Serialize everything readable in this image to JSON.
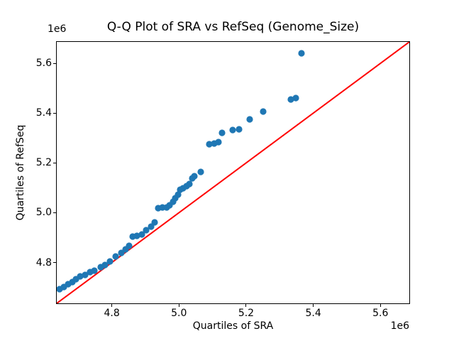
{
  "figure": {
    "background": "#ffffff",
    "text_color": "#000000",
    "spine_color": "#000000"
  },
  "chart_data": {
    "type": "scatter",
    "title": "Q-Q Plot of SRA vs RefSeq (Genome_Size)",
    "xlabel": "Quartiles of SRA",
    "ylabel": "Quartiles of RefSeq",
    "x_offset_text": "1e6",
    "y_offset_text": "1e6",
    "grid": false,
    "legend": "none",
    "xlim": [
      4636000,
      5686000
    ],
    "ylim": [
      4636000,
      5686000
    ],
    "x_ticks": {
      "values": [
        4800000,
        5000000,
        5200000,
        5400000,
        5600000
      ],
      "labels": [
        "4.8",
        "5.0",
        "5.2",
        "5.4",
        "5.6"
      ]
    },
    "y_ticks": {
      "values": [
        4800000,
        5000000,
        5200000,
        5400000,
        5600000
      ],
      "labels": [
        "4.8",
        "5.0",
        "5.2",
        "5.4",
        "5.6"
      ]
    },
    "marker_color": "#1f77b4",
    "marker_radius": 4.6,
    "reference_line": {
      "type": "identity",
      "color": "#ff0000",
      "width": 2,
      "x": [
        4636000,
        5686000
      ],
      "y": [
        4636000,
        5686000
      ]
    },
    "points": [
      [
        4644400,
        4693100
      ],
      [
        4657100,
        4701600
      ],
      [
        4669800,
        4713000
      ],
      [
        4682500,
        4721600
      ],
      [
        4693000,
        4733000
      ],
      [
        4705700,
        4744400
      ],
      [
        4720500,
        4750100
      ],
      [
        4735300,
        4761500
      ],
      [
        4748000,
        4767200
      ],
      [
        4767000,
        4781500
      ],
      [
        4779700,
        4790100
      ],
      [
        4794400,
        4804300
      ],
      [
        4811300,
        4824300
      ],
      [
        4828200,
        4838600
      ],
      [
        4840900,
        4852800
      ],
      [
        4851500,
        4867100
      ],
      [
        4862000,
        4904200
      ],
      [
        4874700,
        4907100
      ],
      [
        4889500,
        4912800
      ],
      [
        4902200,
        4929900
      ],
      [
        4917000,
        4944200
      ],
      [
        4927500,
        4961300
      ],
      [
        4938100,
        5018400
      ],
      [
        4950800,
        5021200
      ],
      [
        4963400,
        5021200
      ],
      [
        4971900,
        5029800
      ],
      [
        4982500,
        5044100
      ],
      [
        4988800,
        5058300
      ],
      [
        4997200,
        5072600
      ],
      [
        5003600,
        5092600
      ],
      [
        5012000,
        5098300
      ],
      [
        5022600,
        5106800
      ],
      [
        5031000,
        5115400
      ],
      [
        5039500,
        5138200
      ],
      [
        5045800,
        5146800
      ],
      [
        5064800,
        5163900
      ],
      [
        5090200,
        5275200
      ],
      [
        5105000,
        5278100
      ],
      [
        5117600,
        5283800
      ],
      [
        5128200,
        5320900
      ],
      [
        5159900,
        5332300
      ],
      [
        5178900,
        5335100
      ],
      [
        5210600,
        5375100
      ],
      [
        5250700,
        5406500
      ],
      [
        5333100,
        5455000
      ],
      [
        5347900,
        5460700
      ],
      [
        5364800,
        5640400
      ]
    ]
  }
}
